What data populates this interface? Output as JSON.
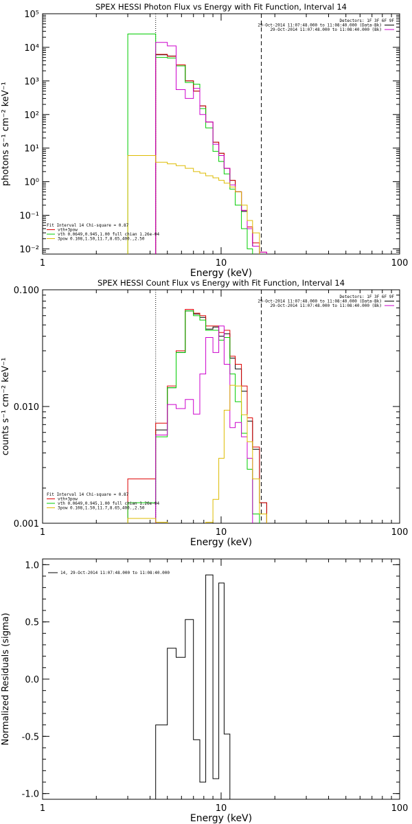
{
  "chart_data": [
    {
      "type": "line",
      "title": "SPEX HESSI Photon Flux vs Energy with Fit Function, Interval 14",
      "xlabel": "Energy (keV)",
      "ylabel": "photons s⁻¹ cm⁻² keV⁻¹",
      "xscale": "log",
      "yscale": "log",
      "xlim": [
        1,
        100
      ],
      "ylim": [
        0.007,
        100000
      ],
      "xticks": [
        {
          "v": 1,
          "label": "1"
        },
        {
          "v": 10,
          "label": "10"
        },
        {
          "v": 100,
          "label": "100"
        }
      ],
      "yticks": [
        {
          "v": 100000,
          "label": "10⁵"
        },
        {
          "v": 10000,
          "label": "10⁴"
        },
        {
          "v": 1000,
          "label": "10³"
        },
        {
          "v": 100,
          "label": "10²"
        },
        {
          "v": 10,
          "label": "10¹"
        },
        {
          "v": 1,
          "label": "10⁰"
        },
        {
          "v": 0.1,
          "label": "10⁻¹"
        },
        {
          "v": 0.01,
          "label": "10⁻²"
        }
      ],
      "vlines": [
        {
          "x": 4.3,
          "style": "dotted"
        },
        {
          "x": 16.8,
          "style": "dashed"
        }
      ],
      "legend_top": [
        "Detectors: 1F 3F 6F 9F",
        "29-Oct-2014 11:07:48.000 to 11:08:40.000 (Data-Bk)",
        "29-Oct-2014 11:07:48.000 to 11:08:40.000 (Bk)"
      ],
      "legend_top_colors": [
        "",
        "#000000",
        "#cc00cc"
      ],
      "legend_bottom": [
        "Fit Interval 14   Chi-square = 0.87",
        "vth+3pow",
        "vth 0.0649,0.945,1.00  full chian 1.26e-04",
        "3pow 0.108,1.50,11.7,8.65,400.,2.50"
      ],
      "legend_bottom_colors": [
        "",
        "#dd0000",
        "#00cc00",
        "#ddbb00"
      ],
      "edges": [
        3.0,
        4.3,
        5.0,
        5.6,
        6.3,
        7.0,
        7.6,
        8.2,
        9.0,
        9.7,
        10.4,
        11.2,
        12.0,
        13.0,
        14.0,
        15.0,
        16.4,
        18.0,
        20.0
      ],
      "series": [
        {
          "name": "",
          "color": "#000000",
          "values": [
            null,
            6000,
            5500,
            3000,
            1000,
            500,
            180,
            60,
            15,
            7,
            2.5,
            1.1,
            0.5,
            0.13,
            0.04,
            0.012,
            null,
            null
          ]
        },
        {
          "name": "",
          "color": "#dd0000",
          "values": [
            null,
            6200,
            5400,
            3000,
            1000,
            500,
            180,
            60,
            15,
            7,
            2.5,
            1.1,
            0.5,
            0.14,
            0.045,
            0.015,
            0.008,
            null
          ]
        },
        {
          "name": "",
          "color": "#00cc00",
          "values": [
            25000,
            5000,
            4800,
            2800,
            900,
            800,
            150,
            40,
            8,
            4,
            1.7,
            0.6,
            0.2,
            0.04,
            0.01,
            null,
            null,
            null
          ]
        },
        {
          "name": "",
          "color": "#cc00cc",
          "values": [
            null,
            14000,
            11000,
            550,
            300,
            600,
            100,
            60,
            13,
            6,
            2.5,
            0.8,
            0.5,
            0.14,
            0.04,
            0.012,
            0.008,
            null
          ]
        },
        {
          "name": "",
          "color": "#ddbb00",
          "values": [
            6,
            3.8,
            3.4,
            3.0,
            2.5,
            2.0,
            1.8,
            1.5,
            1.3,
            1.1,
            0.9,
            0.7,
            0.5,
            0.2,
            0.07,
            0.03,
            null,
            null
          ]
        }
      ]
    },
    {
      "type": "line",
      "title": "SPEX HESSI Count Flux vs Energy with Fit Function, Interval 14",
      "xlabel": "Energy (keV)",
      "ylabel": "counts s⁻¹ cm⁻² keV⁻¹",
      "xscale": "log",
      "yscale": "log",
      "xlim": [
        1,
        100
      ],
      "ylim": [
        0.001,
        0.1
      ],
      "xticks": [
        {
          "v": 1,
          "label": "1"
        },
        {
          "v": 10,
          "label": "10"
        },
        {
          "v": 100,
          "label": "100"
        }
      ],
      "yticks": [
        {
          "v": 0.1,
          "label": "0.100"
        },
        {
          "v": 0.01,
          "label": "0.010"
        },
        {
          "v": 0.001,
          "label": "0.001"
        }
      ],
      "vlines": [
        {
          "x": 4.3,
          "style": "dotted"
        },
        {
          "x": 16.8,
          "style": "dashed"
        }
      ],
      "legend_top": [
        "Detectors: 1F 3F 6F 9F",
        "29-Oct-2014 11:07:48.000 to 11:08:40.000 (Data-Bk)",
        "29-Oct-2014 11:07:48.000 to 11:08:40.000 (Bk)"
      ],
      "legend_top_colors": [
        "",
        "#000000",
        "#cc00cc"
      ],
      "legend_bottom": [
        "Fit Interval 14   Chi-square = 0.87",
        "vth+3pow",
        "vth 0.0649,0.945,1.00  full chian 1.26e-04",
        "3pow 0.108,1.50,11.7,8.65,400.,2.50"
      ],
      "legend_bottom_colors": [
        "",
        "#dd0000",
        "#00cc00",
        "#ddbb00"
      ],
      "edges": [
        3.0,
        4.3,
        5.0,
        5.6,
        6.3,
        7.0,
        7.6,
        8.2,
        9.0,
        9.7,
        10.4,
        11.2,
        12.0,
        13.0,
        14.0,
        15.0,
        16.4,
        18.0,
        20.0
      ],
      "series": [
        {
          "name": "",
          "color": "#000000",
          "values": [
            null,
            0.0063,
            0.0145,
            0.029,
            0.066,
            0.062,
            0.058,
            0.046,
            0.048,
            0.04,
            0.042,
            0.026,
            0.021,
            0.0135,
            0.0075,
            0.0043,
            0.0015,
            null
          ]
        },
        {
          "name": "",
          "color": "#dd0000",
          "values": [
            0.0024,
            0.0072,
            0.015,
            0.03,
            0.068,
            0.063,
            0.06,
            0.049,
            0.049,
            0.043,
            0.045,
            0.027,
            0.023,
            0.015,
            0.008,
            0.0045,
            0.0015,
            null
          ]
        },
        {
          "name": "",
          "color": "#00cc00",
          "values": [
            0.0015,
            0.0055,
            0.0145,
            0.029,
            0.066,
            0.06,
            0.055,
            0.045,
            0.045,
            0.037,
            0.039,
            0.019,
            0.011,
            0.0059,
            0.0029,
            0.0012,
            null,
            null
          ]
        },
        {
          "name": "",
          "color": "#cc00cc",
          "values": [
            null,
            0.0057,
            0.0104,
            0.0096,
            0.0115,
            0.0086,
            0.019,
            0.039,
            0.029,
            0.049,
            0.023,
            0.0066,
            0.0073,
            0.0055,
            0.0036,
            null,
            null,
            null
          ]
        },
        {
          "name": "",
          "color": "#ddbb00",
          "values": [
            0.0011,
            0.00102,
            null,
            null,
            null,
            null,
            null,
            0.00102,
            0.0016,
            0.0036,
            0.0093,
            0.0152,
            0.015,
            0.0085,
            0.005,
            0.0024,
            0.0012,
            null
          ]
        }
      ]
    },
    {
      "type": "line",
      "title": "",
      "xlabel": "Energy (keV)",
      "ylabel": "Normalized Residuals (sigma)",
      "xscale": "log",
      "yscale": "linear",
      "xlim": [
        1,
        100
      ],
      "ylim": [
        -1.05,
        1.05
      ],
      "xticks": [
        {
          "v": 1,
          "label": "1"
        },
        {
          "v": 10,
          "label": "10"
        },
        {
          "v": 100,
          "label": "100"
        }
      ],
      "yticks": [
        {
          "v": 1.0,
          "label": "1.0"
        },
        {
          "v": 0.5,
          "label": "0.5"
        },
        {
          "v": 0.0,
          "label": "0.0"
        },
        {
          "v": -0.5,
          "label": "-0.5"
        },
        {
          "v": -1.0,
          "label": "-1.0"
        }
      ],
      "vlines": [],
      "legend_top_left": "14, 29-Oct-2014 11:07:48.000 to 11:08:40.000",
      "edges": [
        4.3,
        5.0,
        5.6,
        6.3,
        7.0,
        7.6,
        8.2,
        9.0,
        9.7,
        10.4,
        11.2,
        12.0,
        13.0,
        14.0,
        15.0,
        16.4
      ],
      "series": [
        {
          "name": "",
          "color": "#000000",
          "values": [
            -0.4,
            0.27,
            0.19,
            0.52,
            -0.53,
            -0.9,
            0.91,
            -0.87,
            0.84,
            -0.48,
            null,
            null,
            null,
            null,
            null
          ],
          "note_edges": "uses edges[0..10]"
        }
      ]
    }
  ]
}
